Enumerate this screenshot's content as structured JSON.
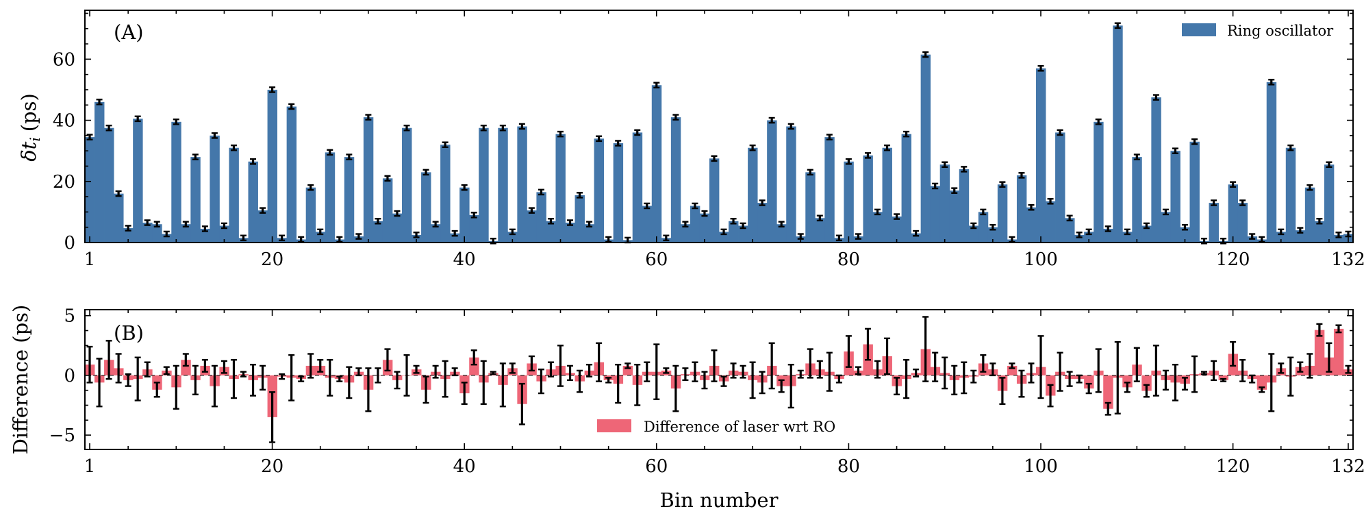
{
  "chart_data": [
    {
      "panel": "A",
      "type": "bar",
      "panel_label": "(A)",
      "ylabel": "δt_i (ps)",
      "ylabel_main": "δt",
      "ylabel_sub": "i",
      "ylabel_unit": "(ps)",
      "xlabel": "",
      "xlim": [
        0.5,
        132.5
      ],
      "ylim": [
        0,
        76
      ],
      "yticks": [
        0,
        20,
        40,
        60
      ],
      "xticks": [
        1,
        20,
        40,
        60,
        80,
        100,
        120,
        132
      ],
      "legend": {
        "label": "Ring oscillator",
        "position": "top-right"
      },
      "color": "#4477AA",
      "error_bar": 0.8,
      "bins": [
        1,
        2,
        3,
        4,
        5,
        6,
        7,
        8,
        9,
        10,
        11,
        12,
        13,
        14,
        15,
        16,
        17,
        18,
        19,
        20,
        21,
        22,
        23,
        24,
        25,
        26,
        27,
        28,
        29,
        30,
        31,
        32,
        33,
        34,
        35,
        36,
        37,
        38,
        39,
        40,
        41,
        42,
        43,
        44,
        45,
        46,
        47,
        48,
        49,
        50,
        51,
        52,
        53,
        54,
        55,
        56,
        57,
        58,
        59,
        60,
        61,
        62,
        63,
        64,
        65,
        66,
        67,
        68,
        69,
        70,
        71,
        72,
        73,
        74,
        75,
        76,
        77,
        78,
        79,
        80,
        81,
        82,
        83,
        84,
        85,
        86,
        87,
        88,
        89,
        90,
        91,
        92,
        93,
        94,
        95,
        96,
        97,
        98,
        99,
        100,
        101,
        102,
        103,
        104,
        105,
        106,
        107,
        108,
        109,
        110,
        111,
        112,
        113,
        114,
        115,
        116,
        117,
        118,
        119,
        120,
        121,
        122,
        123,
        124,
        125,
        126,
        127,
        128,
        129,
        130,
        131,
        132
      ],
      "values": [
        34.5,
        46,
        37.5,
        16,
        4.7,
        40.5,
        6.5,
        6,
        2.8,
        39.5,
        6,
        28,
        4.5,
        35,
        5.5,
        31,
        1.5,
        26.5,
        10.5,
        50,
        1.5,
        44.5,
        1,
        18,
        3.5,
        29.5,
        1,
        28,
        2,
        41,
        7,
        21,
        9.5,
        37.5,
        2.5,
        23,
        6,
        32,
        3,
        18,
        9,
        37.5,
        0.5,
        37.5,
        3.5,
        38,
        10.5,
        16.5,
        7,
        35.5,
        6.5,
        15.5,
        6,
        34,
        1,
        32.5,
        0.8,
        36,
        12,
        51.5,
        1.5,
        41,
        6,
        12,
        9.5,
        27.5,
        3.5,
        7,
        5.5,
        31,
        13,
        40,
        6,
        38,
        2,
        23,
        8,
        34.5,
        1.5,
        26.5,
        2,
        28.5,
        10,
        31,
        8.5,
        35.5,
        3,
        61.5,
        18.5,
        25.5,
        17,
        24,
        5.5,
        10,
        5,
        19,
        1,
        22,
        11.5,
        57,
        13.5,
        36,
        8,
        2.5,
        3.5,
        39.5,
        4.5,
        71,
        3.5,
        28,
        5.5,
        47.5,
        10,
        30,
        5,
        33,
        0.5,
        13,
        0.5,
        19,
        13,
        2,
        1,
        52.5,
        3.5,
        31,
        4,
        18,
        7,
        25.5,
        2.5,
        2.8
      ]
    },
    {
      "panel": "B",
      "type": "bar",
      "panel_label": "(B)",
      "ylabel": "Difference (ps)",
      "xlabel": "Bin number",
      "xlim": [
        0.5,
        132.5
      ],
      "ylim": [
        -6.2,
        5.5
      ],
      "yticks": [
        -5,
        0,
        5
      ],
      "yticklabels": [
        "−5",
        "0",
        "5"
      ],
      "xticks": [
        1,
        20,
        40,
        60,
        80,
        100,
        120,
        132
      ],
      "legend": {
        "label": "Difference of laser wrt RO",
        "position": "bottom-center"
      },
      "color": "#EE6677",
      "bins": [
        1,
        2,
        3,
        4,
        5,
        6,
        7,
        8,
        9,
        10,
        11,
        12,
        13,
        14,
        15,
        16,
        17,
        18,
        19,
        20,
        21,
        22,
        23,
        24,
        25,
        26,
        27,
        28,
        29,
        30,
        31,
        32,
        33,
        34,
        35,
        36,
        37,
        38,
        39,
        40,
        41,
        42,
        43,
        44,
        45,
        46,
        47,
        48,
        49,
        50,
        51,
        52,
        53,
        54,
        55,
        56,
        57,
        58,
        59,
        60,
        61,
        62,
        63,
        64,
        65,
        66,
        67,
        68,
        69,
        70,
        71,
        72,
        73,
        74,
        75,
        76,
        77,
        78,
        79,
        80,
        81,
        82,
        83,
        84,
        85,
        86,
        87,
        88,
        89,
        90,
        91,
        92,
        93,
        94,
        95,
        96,
        97,
        98,
        99,
        100,
        101,
        102,
        103,
        104,
        105,
        106,
        107,
        108,
        109,
        110,
        111,
        112,
        113,
        114,
        115,
        116,
        117,
        118,
        119,
        120,
        121,
        122,
        123,
        124,
        125,
        126,
        127,
        128,
        129,
        130,
        131,
        132
      ],
      "values": [
        0.9,
        -0.6,
        1.3,
        0.6,
        -0.4,
        -0.3,
        0.5,
        -1.2,
        0.4,
        -1,
        1.3,
        -0.4,
        0.8,
        -0.9,
        0.7,
        -0.3,
        0.1,
        -0.4,
        -0.2,
        -3.5,
        -0.1,
        -0.2,
        -0.3,
        0.8,
        0.8,
        -0.2,
        -0.3,
        -0.6,
        0.3,
        -1.2,
        0,
        1.3,
        -0.4,
        0,
        0.5,
        -1.2,
        0.3,
        -0.3,
        0.3,
        -1.5,
        1.5,
        -0.6,
        0.2,
        -0.8,
        0.6,
        -2.4,
        1,
        -0.5,
        0.5,
        0.8,
        0.2,
        -0.5,
        0.4,
        1.1,
        -0.4,
        -0.7,
        0.8,
        -0.8,
        0.3,
        0.3,
        0.4,
        -1.1,
        0.1,
        0.3,
        -0.4,
        0.8,
        -0.5,
        0.4,
        0.3,
        -0.4,
        -0.6,
        0.8,
        -0.9,
        -0.9,
        0.1,
        1,
        0.5,
        0.3,
        -0.3,
        2,
        0.4,
        2.6,
        0.5,
        1.6,
        -0.9,
        -0.3,
        0.2,
        2.2,
        0.7,
        0.2,
        -0.4,
        -0.2,
        -0.1,
        1,
        0.5,
        -1.3,
        0.8,
        -0.7,
        0.2,
        0.7,
        -1.7,
        0.3,
        -0.3,
        -0.3,
        -1.1,
        0.4,
        -2.8,
        -0.2,
        -1,
        0.9,
        -1.3,
        0.4,
        -0.4,
        -0.6,
        -0.7,
        0.1,
        0.2,
        0.4,
        -0.4,
        1.8,
        0.4,
        -0.3,
        -1.2,
        -0.6,
        0.6,
        -0.1,
        0.7,
        0.8,
        3.8,
        1.5,
        3.9,
        0.5
      ],
      "errors": [
        1.5,
        2,
        1.6,
        1.2,
        0.5,
        1.8,
        0.6,
        0.6,
        0.3,
        1.8,
        0.5,
        1.2,
        0.5,
        1.7,
        0.5,
        1.6,
        0.2,
        1.3,
        1,
        2.1,
        0.2,
        1.9,
        0.2,
        1,
        0.5,
        1.5,
        0.2,
        1.3,
        0.3,
        1.8,
        0.6,
        0.9,
        0.7,
        1.7,
        0.3,
        1.1,
        0.5,
        1.5,
        0.3,
        0.9,
        0.6,
        1.8,
        0.1,
        1.8,
        0.4,
        1.7,
        0.6,
        1,
        0.6,
        1.7,
        0.6,
        0.9,
        0.5,
        1.6,
        0.2,
        1.6,
        0.2,
        1.7,
        0.8,
        2.3,
        0.2,
        1.9,
        0.5,
        0.8,
        0.7,
        1.3,
        0.4,
        0.6,
        0.5,
        1.5,
        0.9,
        1.9,
        0.5,
        1.8,
        0.3,
        1.2,
        0.7,
        1.6,
        0.3,
        1.3,
        0.3,
        1.3,
        0.7,
        1.5,
        0.7,
        1.6,
        0.3,
        2.7,
        1.2,
        1.3,
        1.2,
        1.3,
        0.5,
        0.7,
        0.5,
        1.1,
        0.2,
        1.1,
        0.8,
        2.6,
        0.9,
        1.6,
        0.6,
        0.3,
        0.4,
        1.8,
        0.5,
        3,
        0.4,
        1.4,
        0.5,
        2.1,
        0.8,
        1.5,
        0.5,
        1.5,
        0.1,
        0.8,
        0.1,
        1,
        0.9,
        0.3,
        0.2,
        2.4,
        0.4,
        1.6,
        0.4,
        1,
        0.5,
        1.2,
        0.3,
        0.3
      ]
    }
  ]
}
